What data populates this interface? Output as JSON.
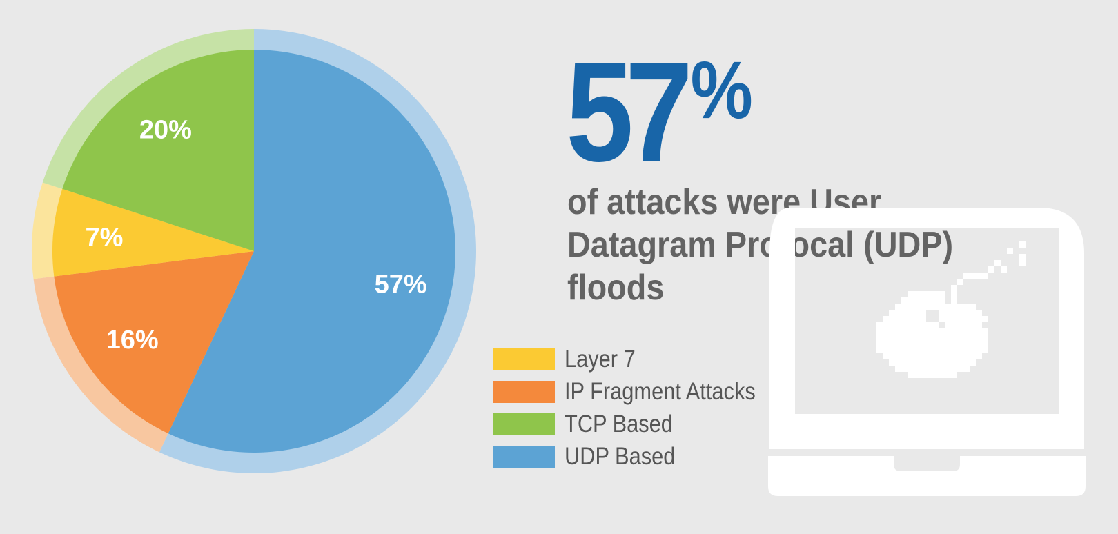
{
  "chart_data": {
    "type": "pie",
    "title": "",
    "slices": [
      {
        "label": "UDP Based",
        "value": 57,
        "value_label": "57%",
        "color": "#5ca3d4",
        "ring_color": "#afd0ea"
      },
      {
        "label": "IP Fragment Attacks",
        "value": 16,
        "value_label": "16%",
        "color": "#f4893c",
        "ring_color": "#f8c7a0"
      },
      {
        "label": "Layer 7",
        "value": 7,
        "value_label": "7%",
        "color": "#fbca33",
        "ring_color": "#fbe49c"
      },
      {
        "label": "TCP Based",
        "value": 20,
        "value_label": "20%",
        "color": "#8fc54b",
        "ring_color": "#c6e2a6"
      }
    ],
    "legend": {
      "placement": "right",
      "order": [
        "Layer 7",
        "IP Fragment Attacks",
        "TCP Based",
        "UDP Based"
      ]
    }
  },
  "headline": {
    "value": "57",
    "unit": "%",
    "caption": "of attacks were User Datagram Protocal (UDP) floods",
    "color": "#1865a8"
  },
  "illustration": {
    "icon": "laptop-bomb-icon",
    "color": "#ffffff"
  }
}
